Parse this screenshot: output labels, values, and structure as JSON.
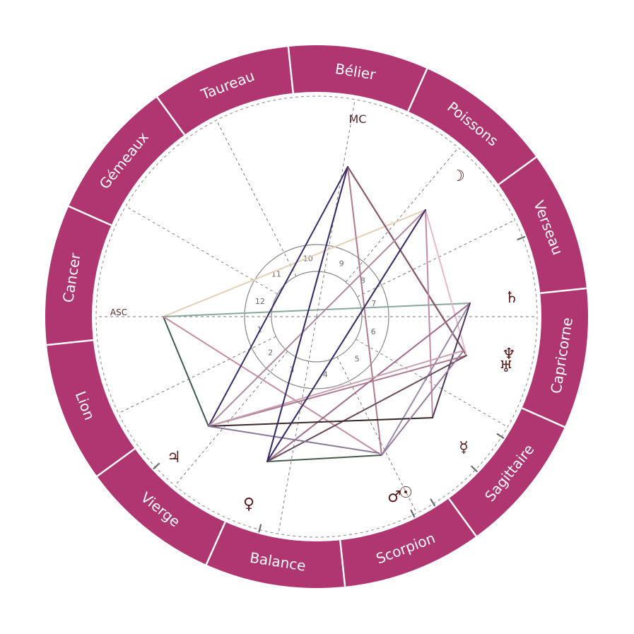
{
  "colors": {
    "ring": "#b03672",
    "ring_divider": "#ffffff",
    "dashed": "#7a7a7a",
    "glyph": "#5a1a1a"
  },
  "zodiac": [
    {
      "name": "Bélier"
    },
    {
      "name": "Poissons"
    },
    {
      "name": "Verseau"
    },
    {
      "name": "Capricorne"
    },
    {
      "name": "Sagittaire"
    },
    {
      "name": "Scorpion"
    },
    {
      "name": "Balance"
    },
    {
      "name": "Vierge"
    },
    {
      "name": "Lion"
    },
    {
      "name": "Cancer"
    },
    {
      "name": "Gémeaux"
    },
    {
      "name": "Taureau"
    }
  ],
  "houses": [
    "1",
    "2",
    "3",
    "4",
    "5",
    "6",
    "7",
    "8",
    "9",
    "10",
    "11",
    "12"
  ],
  "axes": {
    "asc": "ASC",
    "mc": "MC"
  },
  "planets": [
    {
      "id": "moon",
      "glyph": "☽",
      "icon": "moon-icon"
    },
    {
      "id": "saturn",
      "glyph": "♄",
      "icon": "saturn-icon"
    },
    {
      "id": "neptune",
      "glyph": "♆",
      "icon": "neptune-icon"
    },
    {
      "id": "uranus",
      "glyph": "♅",
      "icon": "uranus-icon"
    },
    {
      "id": "mercury",
      "glyph": "☿",
      "icon": "mercury-icon"
    },
    {
      "id": "sun",
      "glyph": "☉",
      "icon": "sun-icon"
    },
    {
      "id": "venus",
      "glyph": "♀",
      "icon": "venus-icon"
    },
    {
      "id": "mars",
      "glyph": "♂",
      "icon": "mars-icon"
    },
    {
      "id": "jupiter",
      "glyph": "♃",
      "icon": "jupiter-icon"
    }
  ]
}
